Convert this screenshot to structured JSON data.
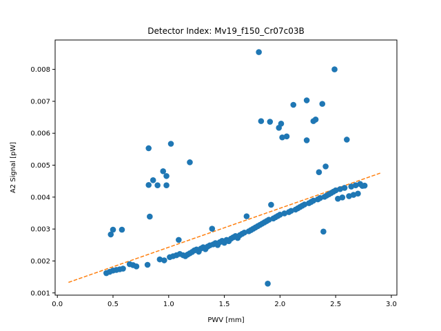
{
  "chart_data": {
    "type": "scatter",
    "title": "Detector Index: Mv19_f150_Cr07c03B",
    "xlabel": "PWV [mm]",
    "ylabel": "A2 Signal [pW]",
    "xlim": [
      -0.02,
      3.05
    ],
    "ylim": [
      0.00093,
      0.00892
    ],
    "x_ticks": [
      0.0,
      0.5,
      1.0,
      1.5,
      2.0,
      2.5,
      3.0
    ],
    "x_tick_labels": [
      "0.0",
      "0.5",
      "1.0",
      "1.5",
      "2.0",
      "2.5",
      "3.0"
    ],
    "y_ticks": [
      0.001,
      0.002,
      0.003,
      0.004,
      0.005,
      0.006,
      0.007,
      0.008
    ],
    "y_tick_labels": [
      "0.001",
      "0.002",
      "0.003",
      "0.004",
      "0.005",
      "0.006",
      "0.007",
      "0.008"
    ],
    "colors": {
      "points": "#1f77b4",
      "fit": "#ff7f0e"
    },
    "series": [
      {
        "name": "data",
        "kind": "scatter",
        "points": [
          [
            0.44,
            0.00162
          ],
          [
            0.47,
            0.00166
          ],
          [
            0.5,
            0.0017
          ],
          [
            0.53,
            0.00172
          ],
          [
            0.56,
            0.00174
          ],
          [
            0.59,
            0.00176
          ],
          [
            0.48,
            0.00283
          ],
          [
            0.5,
            0.00298
          ],
          [
            0.58,
            0.00298
          ],
          [
            0.65,
            0.0019
          ],
          [
            0.68,
            0.00187
          ],
          [
            0.71,
            0.00183
          ],
          [
            0.81,
            0.00188
          ],
          [
            0.82,
            0.00553
          ],
          [
            0.82,
            0.00438
          ],
          [
            0.83,
            0.00339
          ],
          [
            0.86,
            0.00453
          ],
          [
            0.9,
            0.00437
          ],
          [
            0.95,
            0.00481
          ],
          [
            0.98,
            0.00466
          ],
          [
            0.98,
            0.00437
          ],
          [
            1.02,
            0.00567
          ],
          [
            1.19,
            0.00509
          ],
          [
            0.92,
            0.00205
          ],
          [
            0.96,
            0.00202
          ],
          [
            1.01,
            0.00212
          ],
          [
            1.04,
            0.00215
          ],
          [
            1.07,
            0.00218
          ],
          [
            1.09,
            0.00266
          ],
          [
            1.1,
            0.00222
          ],
          [
            1.13,
            0.00218
          ],
          [
            1.15,
            0.00215
          ],
          [
            1.17,
            0.0022
          ],
          [
            1.19,
            0.00224
          ],
          [
            1.21,
            0.00228
          ],
          [
            1.23,
            0.00233
          ],
          [
            1.25,
            0.00236
          ],
          [
            1.27,
            0.00229
          ],
          [
            1.29,
            0.00239
          ],
          [
            1.31,
            0.00243
          ],
          [
            1.33,
            0.00237
          ],
          [
            1.35,
            0.00245
          ],
          [
            1.37,
            0.00249
          ],
          [
            1.39,
            0.00301
          ],
          [
            1.4,
            0.00252
          ],
          [
            1.42,
            0.00256
          ],
          [
            1.44,
            0.0025
          ],
          [
            1.46,
            0.00259
          ],
          [
            1.48,
            0.00263
          ],
          [
            1.5,
            0.00257
          ],
          [
            1.52,
            0.00266
          ],
          [
            1.54,
            0.00262
          ],
          [
            1.56,
            0.0027
          ],
          [
            1.58,
            0.00274
          ],
          [
            1.6,
            0.00278
          ],
          [
            1.62,
            0.00272
          ],
          [
            1.64,
            0.00281
          ],
          [
            1.66,
            0.00285
          ],
          [
            1.68,
            0.00289
          ],
          [
            1.7,
            0.0034
          ],
          [
            1.72,
            0.00293
          ],
          [
            1.74,
            0.00297
          ],
          [
            1.76,
            0.00301
          ],
          [
            1.78,
            0.00305
          ],
          [
            1.8,
            0.00309
          ],
          [
            1.81,
            0.00854
          ],
          [
            1.82,
            0.00313
          ],
          [
            1.83,
            0.00638
          ],
          [
            1.84,
            0.00317
          ],
          [
            1.86,
            0.00321
          ],
          [
            1.88,
            0.00325
          ],
          [
            1.89,
            0.00129
          ],
          [
            1.9,
            0.00329
          ],
          [
            1.91,
            0.00636
          ],
          [
            1.92,
            0.00376
          ],
          [
            1.94,
            0.00333
          ],
          [
            1.96,
            0.00337
          ],
          [
            1.98,
            0.00341
          ],
          [
            1.99,
            0.00617
          ],
          [
            2.0,
            0.00345
          ],
          [
            2.01,
            0.0063
          ],
          [
            2.02,
            0.00587
          ],
          [
            2.04,
            0.00349
          ],
          [
            2.06,
            0.0059
          ],
          [
            2.08,
            0.00353
          ],
          [
            2.1,
            0.00357
          ],
          [
            2.12,
            0.00689
          ],
          [
            2.14,
            0.00361
          ],
          [
            2.16,
            0.00365
          ],
          [
            2.18,
            0.00369
          ],
          [
            2.2,
            0.00373
          ],
          [
            2.22,
            0.00377
          ],
          [
            2.24,
            0.00578
          ],
          [
            2.24,
            0.00703
          ],
          [
            2.26,
            0.00381
          ],
          [
            2.28,
            0.00385
          ],
          [
            2.3,
            0.00638
          ],
          [
            2.3,
            0.00389
          ],
          [
            2.32,
            0.00643
          ],
          [
            2.34,
            0.00393
          ],
          [
            2.35,
            0.00478
          ],
          [
            2.36,
            0.00397
          ],
          [
            2.38,
            0.00692
          ],
          [
            2.39,
            0.00292
          ],
          [
            2.4,
            0.00401
          ],
          [
            2.41,
            0.00496
          ],
          [
            2.42,
            0.00405
          ],
          [
            2.44,
            0.00409
          ],
          [
            2.46,
            0.00413
          ],
          [
            2.48,
            0.00417
          ],
          [
            2.49,
            0.008
          ],
          [
            2.5,
            0.00421
          ],
          [
            2.52,
            0.00395
          ],
          [
            2.54,
            0.00425
          ],
          [
            2.56,
            0.00399
          ],
          [
            2.58,
            0.00429
          ],
          [
            2.6,
            0.0058
          ],
          [
            2.62,
            0.00403
          ],
          [
            2.64,
            0.00433
          ],
          [
            2.66,
            0.00407
          ],
          [
            2.68,
            0.00437
          ],
          [
            2.7,
            0.00411
          ],
          [
            2.72,
            0.00441
          ],
          [
            2.74,
            0.00435
          ],
          [
            2.76,
            0.00436
          ]
        ]
      },
      {
        "name": "fit",
        "kind": "line",
        "style": "dashed",
        "points": [
          [
            0.1,
            0.00133
          ],
          [
            2.9,
            0.00475
          ]
        ]
      }
    ]
  }
}
